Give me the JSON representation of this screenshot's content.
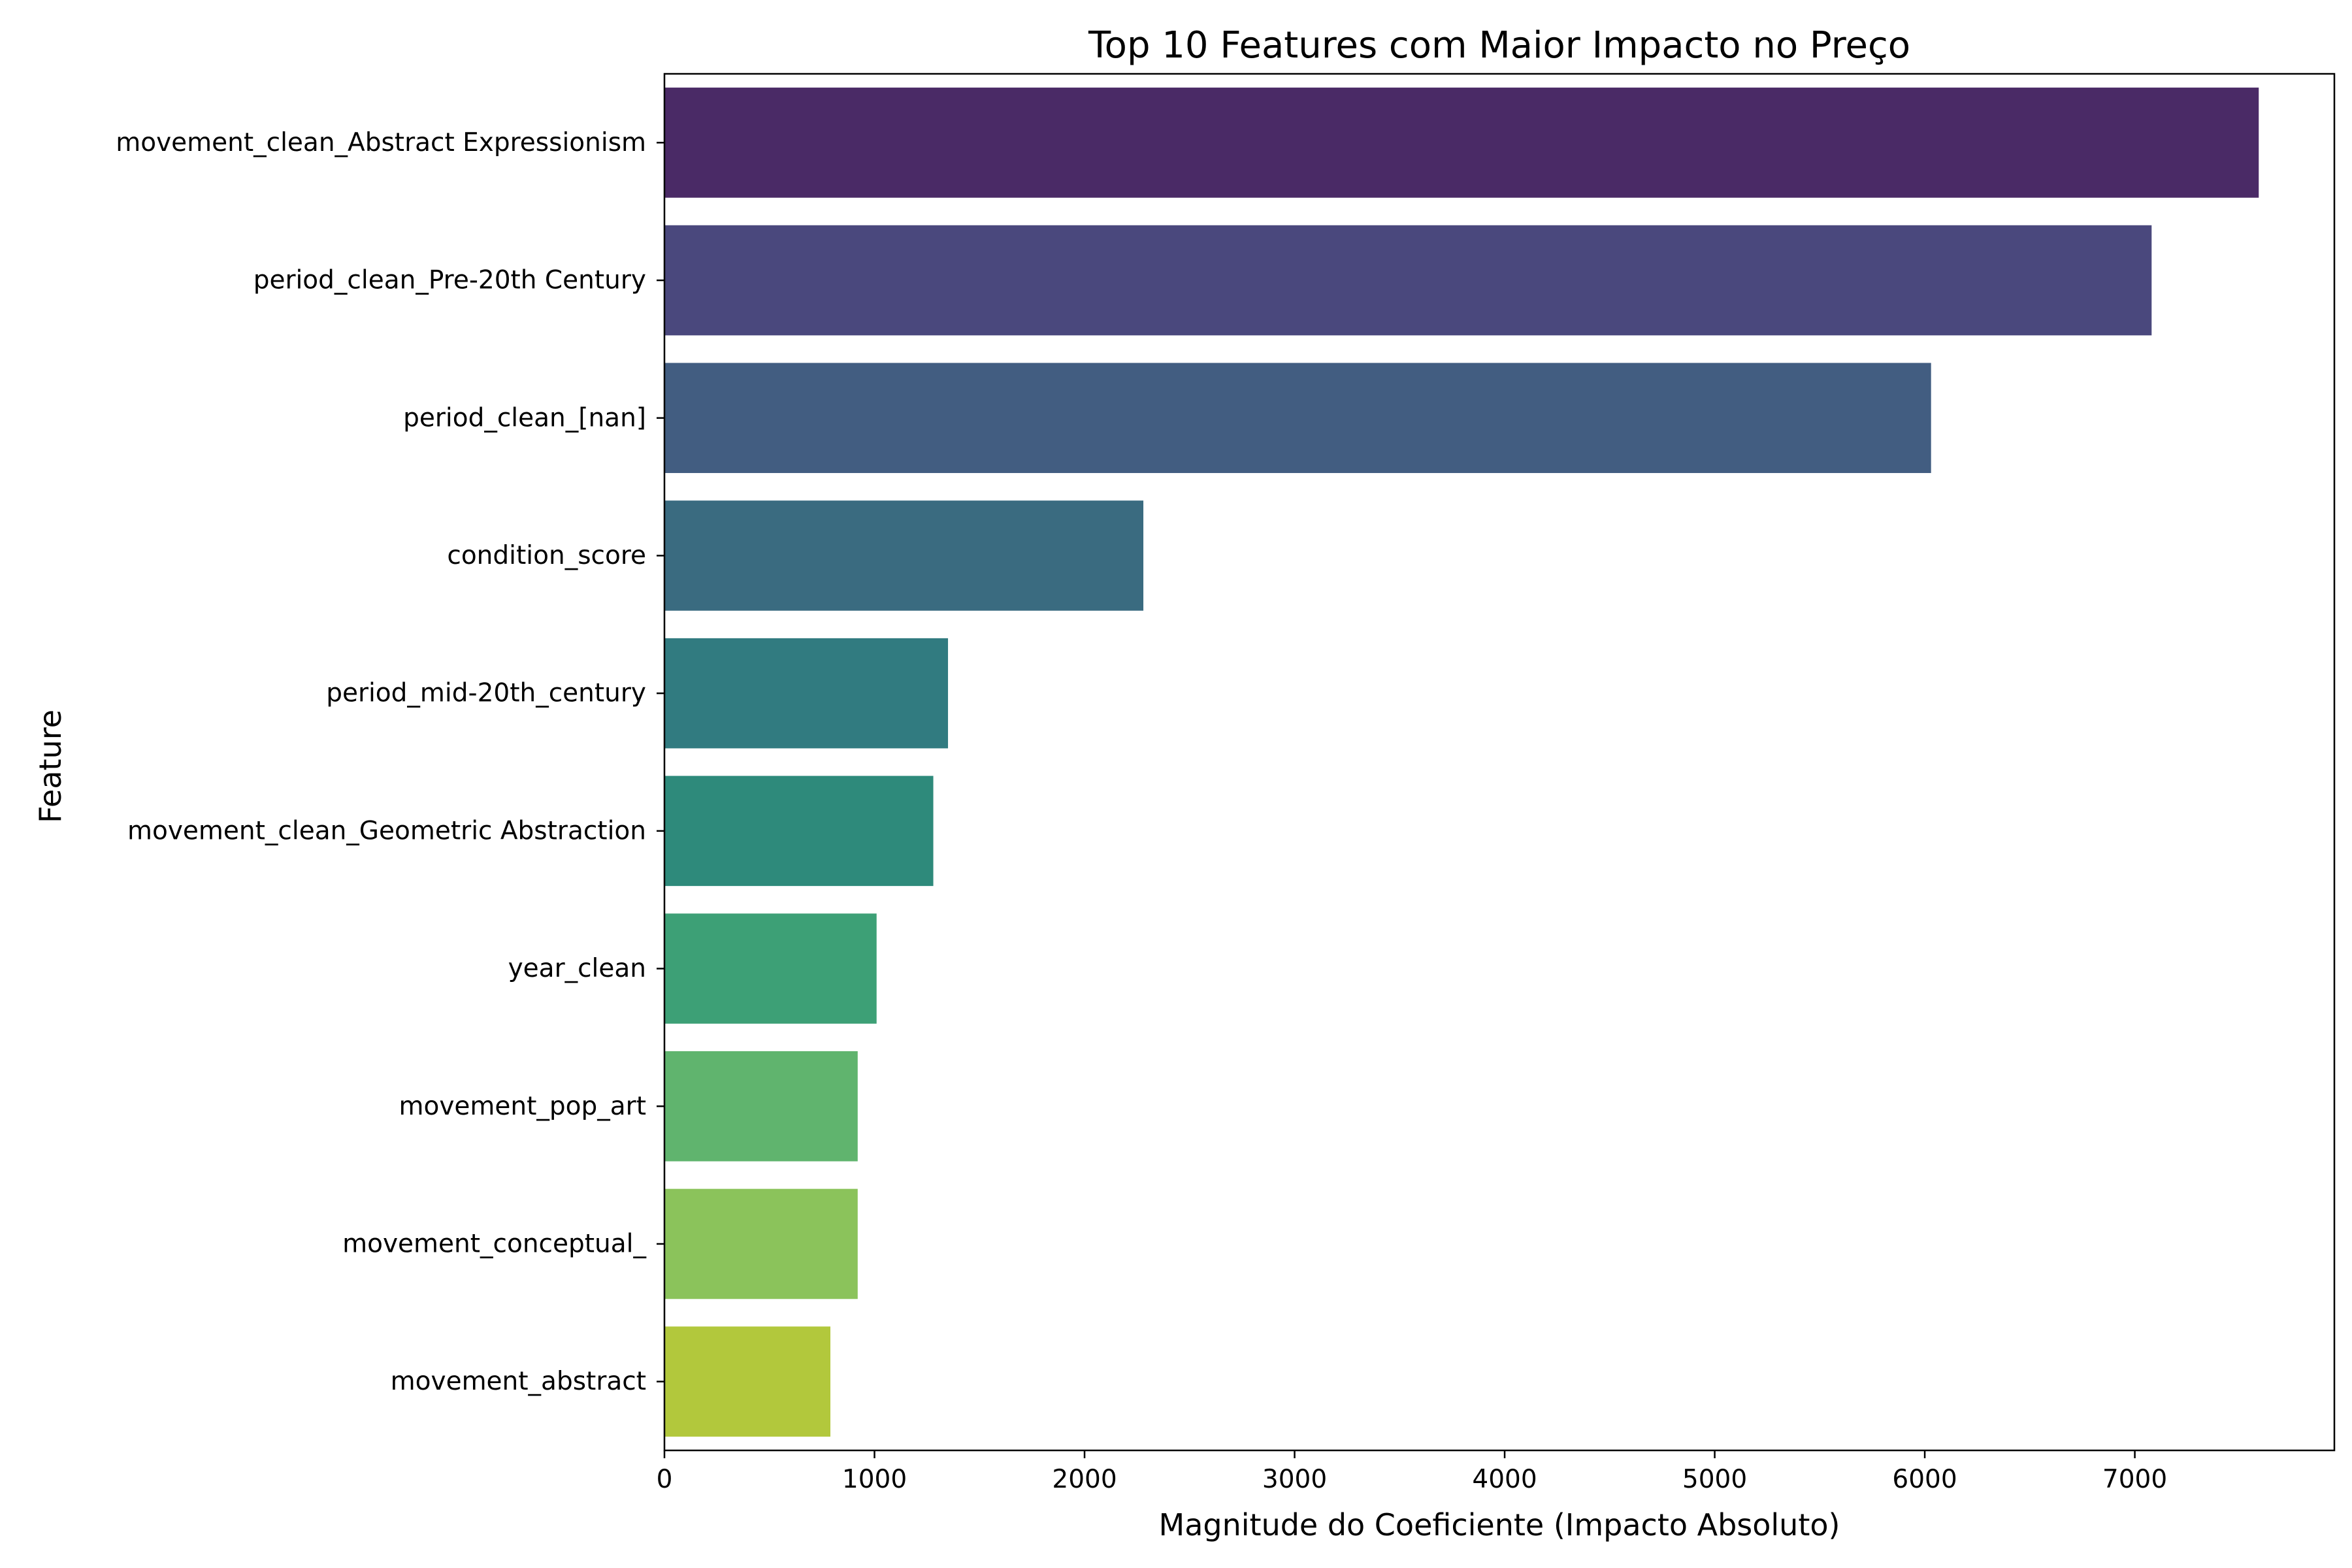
{
  "chart_data": {
    "type": "bar",
    "orientation": "horizontal",
    "title": "Top 10 Features com Maior Impacto no Preço",
    "xlabel": "Magnitude do Coeficiente (Impacto Absoluto)",
    "ylabel": "Feature",
    "xlim": [
      0,
      7950
    ],
    "xticks": [
      0,
      1000,
      2000,
      3000,
      4000,
      5000,
      6000,
      7000
    ],
    "grid": false,
    "legend": "none",
    "categories": [
      "movement_clean_Abstract Expressionism",
      "period_clean_Pre-20th Century",
      "period_clean_[nan]",
      "condition_score",
      "period_mid-20th_century",
      "movement_clean_Geometric Abstraction",
      "year_clean",
      "movement_pop_art",
      "movement_conceptual_",
      "movement_abstract"
    ],
    "values": [
      7590,
      7080,
      6030,
      2280,
      1350,
      1280,
      1010,
      920,
      920,
      790
    ],
    "colors": [
      "#4a2a66",
      "#4a487d",
      "#425d81",
      "#3a6b80",
      "#317b80",
      "#2e8a7b",
      "#3da076",
      "#60b46e",
      "#8bc35b",
      "#b2c83c"
    ]
  }
}
